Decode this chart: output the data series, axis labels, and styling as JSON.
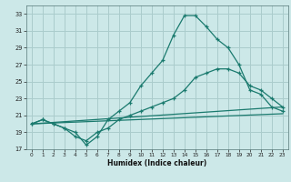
{
  "xlabel": "Humidex (Indice chaleur)",
  "bg_color": "#cce8e8",
  "grid_color": "#aacccc",
  "line_color": "#1a7a6e",
  "line1_marked": {
    "x": [
      0,
      1,
      2,
      3,
      4,
      5,
      6,
      7,
      8,
      9,
      10,
      11,
      12,
      13,
      14,
      15,
      16,
      17,
      18,
      19,
      20,
      21,
      22,
      23
    ],
    "y": [
      20.0,
      20.5,
      20.0,
      19.5,
      19.0,
      17.5,
      18.5,
      20.5,
      21.5,
      22.5,
      24.5,
      26.0,
      27.5,
      30.5,
      32.8,
      32.8,
      31.5,
      30.0,
      29.0,
      27.0,
      24.0,
      23.5,
      22.0,
      21.5
    ]
  },
  "line2_marked": {
    "x": [
      0,
      1,
      2,
      3,
      4,
      5,
      6,
      7,
      8,
      9,
      10,
      11,
      12,
      13,
      14,
      15,
      16,
      17,
      18,
      19,
      20,
      21,
      22,
      23
    ],
    "y": [
      20.0,
      20.5,
      20.0,
      19.5,
      18.5,
      18.0,
      19.0,
      19.5,
      20.5,
      21.0,
      21.5,
      22.0,
      22.5,
      23.0,
      24.0,
      25.5,
      26.0,
      26.5,
      26.5,
      26.0,
      24.5,
      24.0,
      23.0,
      22.0
    ]
  },
  "line3_straight": {
    "x": [
      0,
      23
    ],
    "y": [
      20.0,
      22.0
    ]
  },
  "line4_straight": {
    "x": [
      0,
      23
    ],
    "y": [
      20.0,
      21.2
    ]
  },
  "xlim": [
    -0.5,
    23.5
  ],
  "ylim": [
    17,
    34
  ],
  "xticks": [
    0,
    1,
    2,
    3,
    4,
    5,
    6,
    7,
    8,
    9,
    10,
    11,
    12,
    13,
    14,
    15,
    16,
    17,
    18,
    19,
    20,
    21,
    22,
    23
  ],
  "yticks": [
    17,
    19,
    21,
    23,
    25,
    27,
    29,
    31,
    33
  ]
}
